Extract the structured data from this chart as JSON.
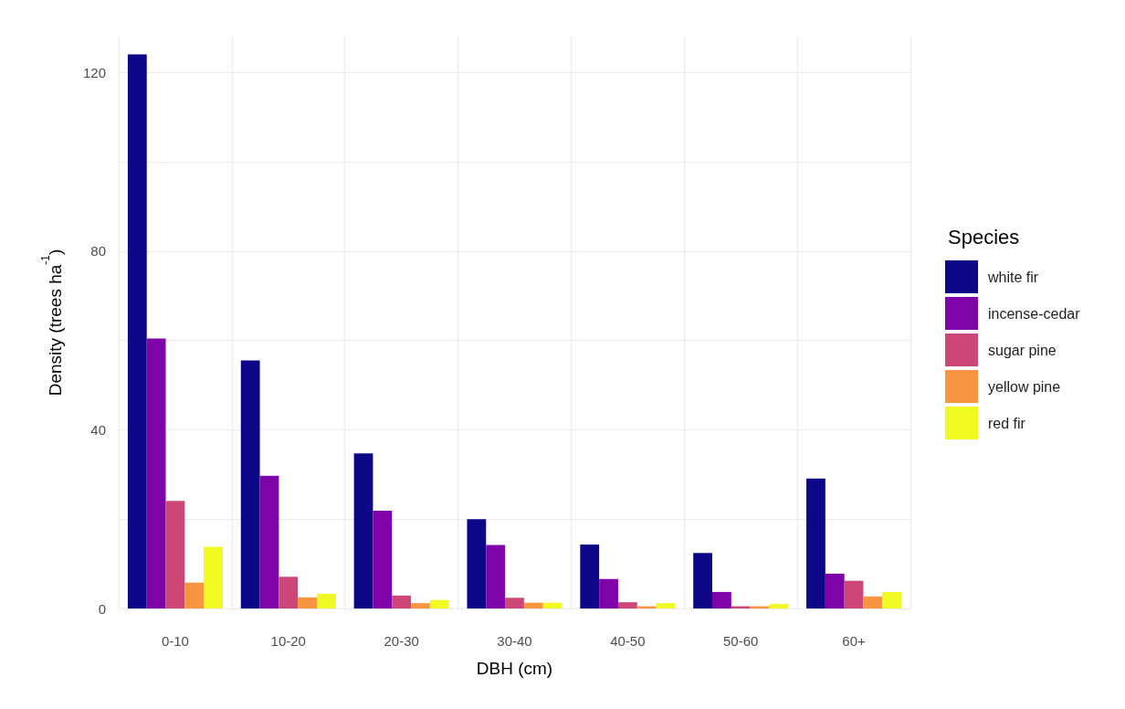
{
  "chart_data": {
    "type": "bar",
    "xlabel": "DBH (cm)",
    "ylabel": "Density (trees ha$^{-1}$)",
    "legend_title": "Species",
    "categories": [
      "0-10",
      "10-20",
      "20-30",
      "30-40",
      "40-50",
      "50-60",
      "60+"
    ],
    "series": [
      {
        "name": "white fir",
        "color": "#0d0887",
        "values": [
          124,
          55.5,
          34.7,
          20,
          14.3,
          12.4,
          29.1
        ]
      },
      {
        "name": "incense-cedar",
        "color": "#7e03a8",
        "values": [
          60.4,
          29.7,
          21.9,
          14.2,
          6.6,
          3.7,
          7.8
        ]
      },
      {
        "name": "sugar pine",
        "color": "#cc4778",
        "values": [
          24.1,
          7.1,
          2.9,
          2.4,
          1.4,
          0.5,
          6.2
        ]
      },
      {
        "name": "yellow pine",
        "color": "#f89540",
        "values": [
          5.8,
          2.5,
          1.2,
          1.3,
          0.5,
          0.5,
          2.7
        ]
      },
      {
        "name": "red fir",
        "color": "#f0f921",
        "values": [
          13.8,
          3.3,
          1.9,
          1.3,
          1.2,
          1,
          3.7
        ]
      }
    ],
    "ylim": [
      0,
      128
    ],
    "yticks": [
      0,
      {
        "value": 20,
        "label": null
      },
      40,
      {
        "value": 60,
        "label": null
      },
      80,
      {
        "value": 100,
        "label": null
      },
      120
    ],
    "grid": true,
    "legend": "right"
  }
}
